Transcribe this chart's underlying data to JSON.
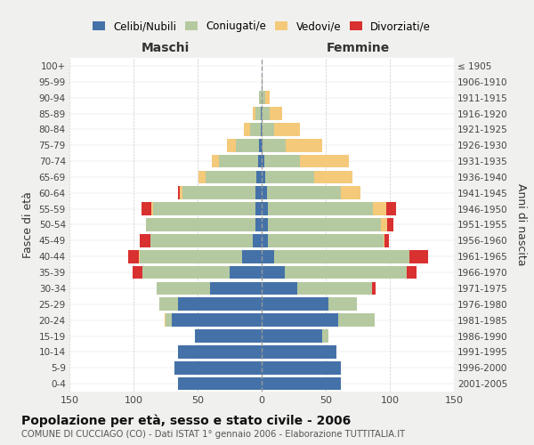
{
  "age_groups": [
    "0-4",
    "5-9",
    "10-14",
    "15-19",
    "20-24",
    "25-29",
    "30-34",
    "35-39",
    "40-44",
    "45-49",
    "50-54",
    "55-59",
    "60-64",
    "65-69",
    "70-74",
    "75-79",
    "80-84",
    "85-89",
    "90-94",
    "95-99",
    "100+"
  ],
  "birth_years": [
    "2001-2005",
    "1996-2000",
    "1991-1995",
    "1986-1990",
    "1981-1985",
    "1976-1980",
    "1971-1975",
    "1966-1970",
    "1961-1965",
    "1956-1960",
    "1951-1955",
    "1946-1950",
    "1941-1945",
    "1936-1940",
    "1931-1935",
    "1926-1930",
    "1921-1925",
    "1916-1920",
    "1911-1915",
    "1906-1910",
    "≤ 1905"
  ],
  "colors": {
    "celibe": "#4472a8",
    "coniugato": "#b5c9a0",
    "vedovo": "#f5c97a",
    "divorziato": "#d93030"
  },
  "males_celibe": [
    65,
    68,
    65,
    52,
    70,
    65,
    40,
    25,
    15,
    7,
    5,
    5,
    5,
    4,
    3,
    2,
    1,
    1,
    0,
    0,
    0
  ],
  "males_coniugato": [
    0,
    0,
    0,
    0,
    5,
    15,
    42,
    68,
    80,
    80,
    85,
    80,
    57,
    40,
    30,
    18,
    8,
    4,
    2,
    0,
    0
  ],
  "males_vedovo": [
    0,
    0,
    0,
    0,
    1,
    0,
    0,
    0,
    1,
    0,
    0,
    1,
    2,
    5,
    6,
    7,
    5,
    2,
    0,
    0,
    0
  ],
  "males_divorziato": [
    0,
    0,
    0,
    0,
    0,
    0,
    0,
    8,
    8,
    8,
    0,
    8,
    1,
    0,
    0,
    0,
    0,
    0,
    0,
    0,
    0
  ],
  "females_nubile": [
    62,
    62,
    58,
    47,
    60,
    52,
    28,
    18,
    10,
    5,
    5,
    5,
    4,
    3,
    2,
    1,
    0,
    0,
    0,
    0,
    0
  ],
  "females_coniugata": [
    0,
    0,
    0,
    5,
    28,
    22,
    58,
    95,
    105,
    90,
    88,
    82,
    58,
    38,
    28,
    18,
    10,
    6,
    3,
    1,
    0
  ],
  "females_vedova": [
    0,
    0,
    0,
    0,
    0,
    0,
    0,
    0,
    0,
    1,
    5,
    10,
    15,
    30,
    38,
    28,
    20,
    10,
    3,
    0,
    0
  ],
  "females_divorziata": [
    0,
    0,
    0,
    0,
    0,
    0,
    3,
    8,
    15,
    3,
    5,
    8,
    0,
    0,
    0,
    0,
    0,
    0,
    0,
    0,
    0
  ],
  "xlim": 150,
  "xtick_step": 50,
  "title": "Popolazione per età, sesso e stato civile - 2006",
  "subtitle": "COMUNE DI CUCCIAGO (CO) - Dati ISTAT 1° gennaio 2006 - Elaborazione TUTTITALIA.IT",
  "ylabel_left": "Fasce di età",
  "ylabel_right": "Anni di nascita",
  "label_maschi": "Maschi",
  "label_femmine": "Femmine",
  "legend_labels": [
    "Celibi/Nubili",
    "Coniugati/e",
    "Vedovi/e",
    "Divorziati/e"
  ],
  "bg_color": "#f0f0ee",
  "plot_bg": "#ffffff",
  "grid_color": "#cccccc",
  "center_line_color": "#999999"
}
